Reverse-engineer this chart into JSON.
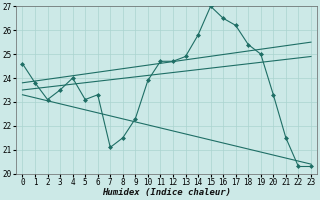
{
  "xlabel": "Humidex (Indice chaleur)",
  "xlim": [
    -0.5,
    23.5
  ],
  "ylim": [
    20,
    27
  ],
  "yticks": [
    20,
    21,
    22,
    23,
    24,
    25,
    26,
    27
  ],
  "xticks": [
    0,
    1,
    2,
    3,
    4,
    5,
    6,
    7,
    8,
    9,
    10,
    11,
    12,
    13,
    14,
    15,
    16,
    17,
    18,
    19,
    20,
    21,
    22,
    23
  ],
  "bg_color": "#cce9e7",
  "line_color": "#1e6e65",
  "grid_color": "#aad4d0",
  "series1_x": [
    0,
    1,
    2,
    3,
    4,
    5,
    6,
    7,
    8,
    9,
    10,
    11,
    12,
    13,
    14,
    15,
    16,
    17,
    18,
    19,
    20,
    21,
    22,
    23
  ],
  "series1_y": [
    24.6,
    23.8,
    23.1,
    23.5,
    24.0,
    23.1,
    23.3,
    21.1,
    21.5,
    22.3,
    23.9,
    24.7,
    24.7,
    24.9,
    25.8,
    27.0,
    26.5,
    26.2,
    25.4,
    25.0,
    23.3,
    21.5,
    20.3,
    20.3
  ],
  "trend1_x": [
    0,
    23
  ],
  "trend1_y": [
    23.8,
    25.5
  ],
  "trend2_x": [
    0,
    23
  ],
  "trend2_y": [
    23.3,
    20.4
  ],
  "trend3_x": [
    0,
    23
  ],
  "trend3_y": [
    23.5,
    24.9
  ]
}
